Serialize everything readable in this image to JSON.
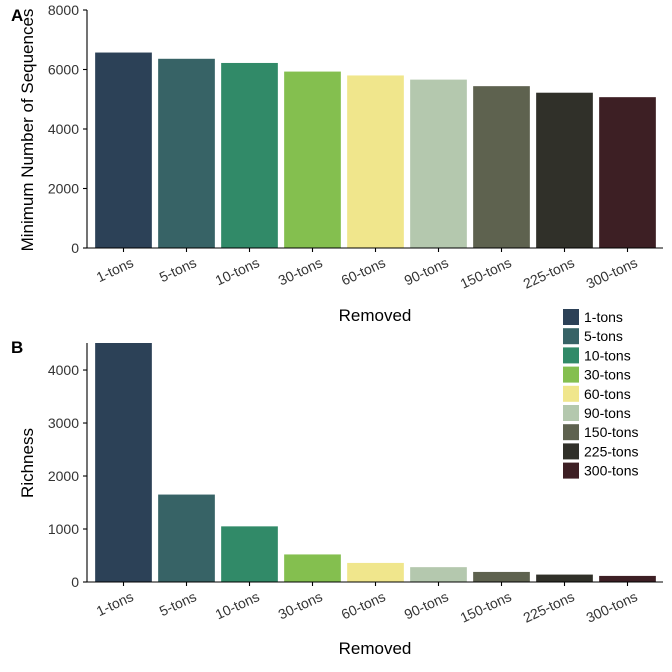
{
  "chart_data": [
    {
      "type": "bar",
      "panel_tag": "A",
      "categories": [
        "1-tons",
        "5-tons",
        "10-tons",
        "30-tons",
        "60-tons",
        "90-tons",
        "150-tons",
        "225-tons",
        "300-tons"
      ],
      "values": [
        6570,
        6360,
        6220,
        5930,
        5800,
        5660,
        5440,
        5220,
        5070
      ],
      "xlabel": "Removed",
      "ylabel": "Minimum Number of Sequences",
      "ylim": [
        0,
        8000
      ],
      "yticks": [
        0,
        2000,
        4000,
        6000,
        8000
      ],
      "grid": false
    },
    {
      "type": "bar",
      "panel_tag": "B",
      "categories": [
        "1-tons",
        "5-tons",
        "10-tons",
        "30-tons",
        "60-tons",
        "90-tons",
        "150-tons",
        "225-tons",
        "300-tons"
      ],
      "values": [
        4510,
        1650,
        1050,
        520,
        360,
        280,
        190,
        140,
        115
      ],
      "xlabel": "Removed",
      "ylabel": "Richness",
      "ylim": [
        0,
        4510
      ],
      "yticks": [
        0,
        1000,
        2000,
        3000,
        4000
      ],
      "grid": false
    }
  ],
  "legend": {
    "placement": "top-right of panel B",
    "entries": [
      "1-tons",
      "5-tons",
      "10-tons",
      "30-tons",
      "60-tons",
      "90-tons",
      "150-tons",
      "225-tons",
      "300-tons"
    ]
  },
  "colors": [
    "#2c4157",
    "#376366",
    "#318a68",
    "#84bf4f",
    "#f0e68c",
    "#b4c8ae",
    "#5e624f",
    "#303029",
    "#3d1f24"
  ]
}
